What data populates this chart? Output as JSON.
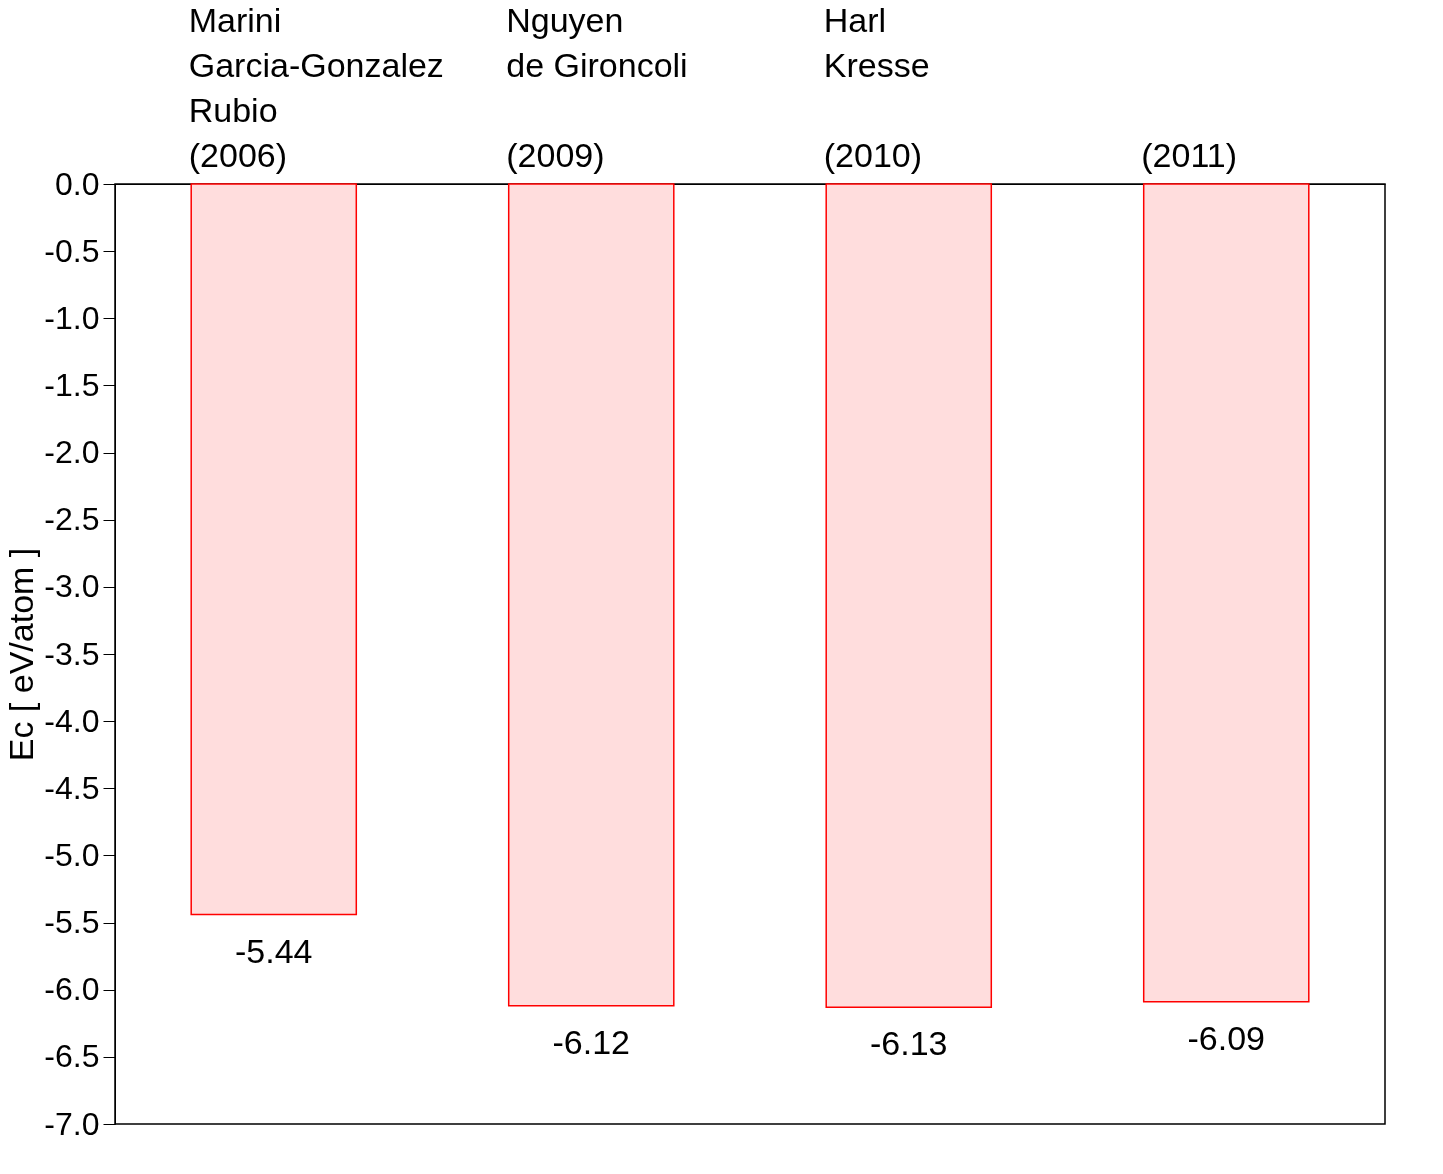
{
  "chart_data": {
    "type": "bar",
    "categories": [
      "Marini\nGarcia-Gonzalez\nRubio\n(2006)",
      "Nguyen\nde Gironcoli\n\n(2009)",
      "Harl\nKresse\n\n(2010)",
      "(2011)"
    ],
    "values": [
      -5.44,
      -6.12,
      -6.13,
      -6.09
    ],
    "color": "#ff0000",
    "ylabel": "Ec  [ eV/atom ]",
    "ylim": [
      -7.0,
      0.0
    ],
    "yticks": [
      {
        "value": 0,
        "label": "0.0"
      },
      {
        "value": -0.5,
        "label": "-0.5"
      },
      {
        "value": -1,
        "label": "-1.0"
      },
      {
        "value": -1.5,
        "label": "-1.5"
      },
      {
        "value": -2,
        "label": "-2.0"
      },
      {
        "value": -2.5,
        "label": "-2.5"
      },
      {
        "value": -3,
        "label": "-3.0"
      },
      {
        "value": -3.5,
        "label": "-3.5"
      },
      {
        "value": -4,
        "label": "-4.0"
      },
      {
        "value": -4.5,
        "label": "-4.5"
      },
      {
        "value": -5,
        "label": "-5.0"
      },
      {
        "value": -5.5,
        "label": "-5.5"
      },
      {
        "value": -6,
        "label": "-6.0"
      },
      {
        "value": -6.5,
        "label": "-6.5"
      },
      {
        "value": -7,
        "label": "-7.0"
      }
    ],
    "data_labels": true,
    "grid": false,
    "legend": false
  }
}
